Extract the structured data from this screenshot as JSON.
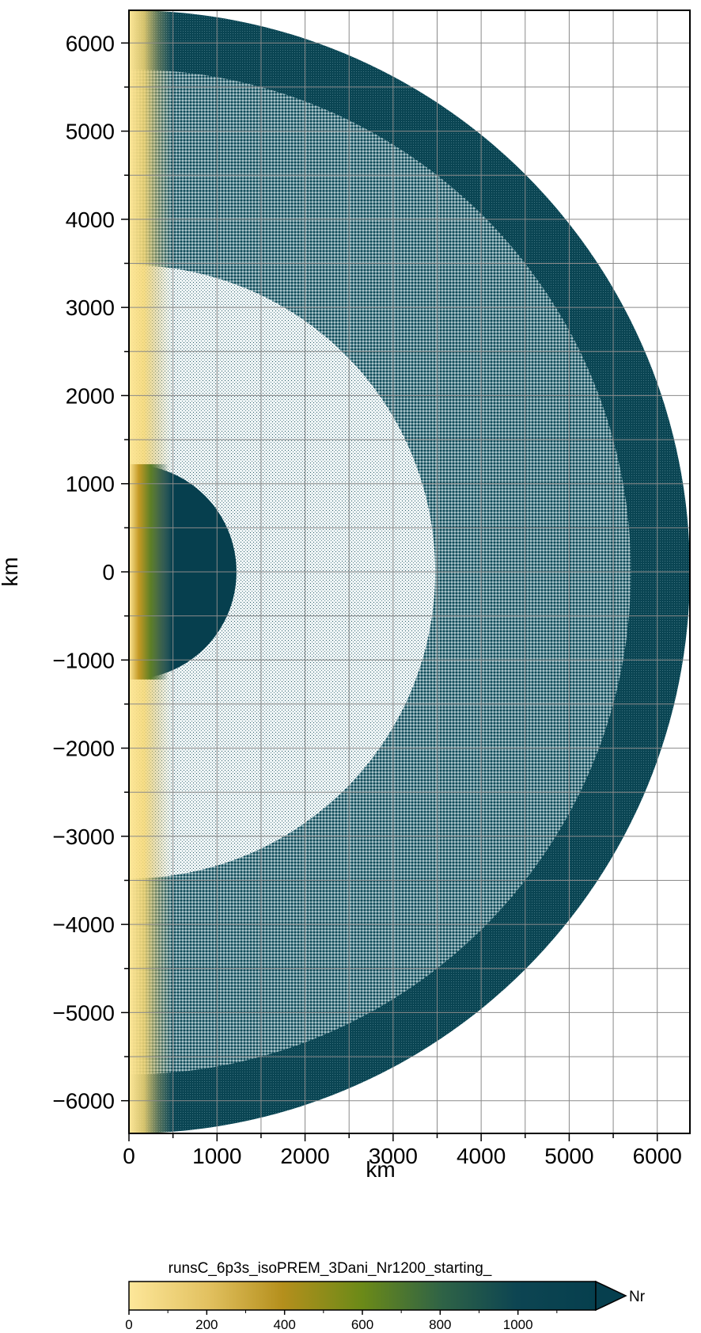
{
  "chart_data": {
    "type": "heatmap",
    "title": "",
    "xlabel": "km",
    "ylabel": "km",
    "xlim": [
      0,
      6371
    ],
    "ylim": [
      -6371,
      6371
    ],
    "x_ticks": [
      0,
      1000,
      2000,
      3000,
      4000,
      5000,
      6000
    ],
    "y_ticks": [
      6000,
      5000,
      4000,
      3000,
      2000,
      1000,
      0,
      -1000,
      -2000,
      -3000,
      -4000,
      -5000,
      -6000
    ],
    "x_tick_labels": [
      "0",
      "1000",
      "2000",
      "3000",
      "4000",
      "5000",
      "6000"
    ],
    "y_tick_labels": [
      "6000",
      "5000",
      "4000",
      "3000",
      "2000",
      "1000",
      "0",
      "−1000",
      "−2000",
      "−3000",
      "−4000",
      "−5000",
      "−6000"
    ],
    "grid": true,
    "grid_spacing_km": 500,
    "shells": [
      {
        "r_inner": 5701,
        "r_outer": 6371,
        "density": "dense"
      },
      {
        "r_inner": 3480,
        "r_outer": 5701,
        "density": "medium"
      },
      {
        "r_inner": 1221,
        "r_outer": 3480,
        "density": "sparse"
      },
      {
        "r_inner": 0,
        "r_outer": 1221,
        "density": "solid"
      }
    ],
    "colorbar": {
      "title": "runsC_6p3s_isoPREM_3Dani_Nr1200_starting_",
      "label": "Nr",
      "range": [
        0,
        1200
      ],
      "ticks": [
        0,
        200,
        400,
        600,
        800,
        1000
      ],
      "tick_labels": [
        "0",
        "200",
        "400",
        "600",
        "800",
        "1000"
      ],
      "colors": [
        "#fde79a",
        "#b48f1c",
        "#6b8a18",
        "#2f6346",
        "#0d4552",
        "#063f4e"
      ]
    }
  }
}
